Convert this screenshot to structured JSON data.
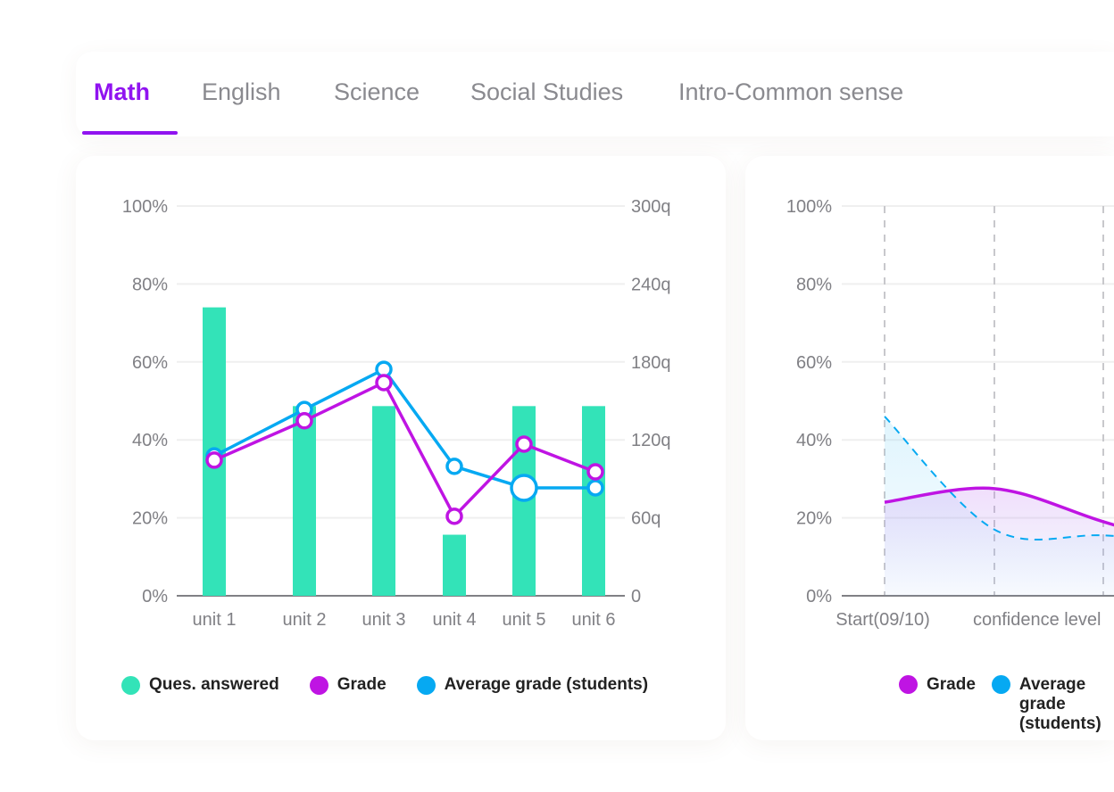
{
  "tabs": [
    {
      "label": "Math",
      "active": true
    },
    {
      "label": "English"
    },
    {
      "label": "Science"
    },
    {
      "label": "Social Studies"
    },
    {
      "label": "Intro-Common sense"
    }
  ],
  "colors": {
    "bar": "#33e3b8",
    "grade": "#bf14e3",
    "average": "#06a9f2",
    "accent": "#9013f0"
  },
  "chart_data": [
    {
      "type": "bar+line",
      "categories": [
        "unit 1",
        "unit 2",
        "unit 3",
        "unit 4",
        "unit 5",
        "unit 6"
      ],
      "y_left": {
        "ticks": [
          "0%",
          "20%",
          "40%",
          "60%",
          "80%",
          "100%"
        ],
        "range": [
          0,
          100
        ]
      },
      "y_right": {
        "ticks": [
          "0",
          "60q",
          "120q",
          "180q",
          "240q",
          "300q"
        ],
        "range": [
          0,
          300
        ]
      },
      "grid": true,
      "legend_position": "bottom",
      "series": [
        {
          "name": "Ques. answered",
          "type": "bar",
          "axis": "right",
          "values": [
            222,
            146,
            146,
            47,
            146,
            146
          ]
        },
        {
          "name": "Grade",
          "type": "line",
          "axis": "left",
          "values": [
            34.8,
            44.9,
            54.7,
            20.4,
            38.9,
            31.8
          ]
        },
        {
          "name": "Average grade (students)",
          "type": "line",
          "axis": "left",
          "values": [
            35.9,
            47.8,
            58.1,
            33.2,
            27.7,
            27.7
          ],
          "highlight_index": 4
        }
      ]
    },
    {
      "type": "area",
      "categories": [
        "Start(09/10)",
        "confidence level",
        ""
      ],
      "y": {
        "ticks": [
          "0%",
          "20%",
          "40%",
          "60%",
          "80%",
          "100%"
        ],
        "range": [
          0,
          100
        ]
      },
      "grid": true,
      "legend_position": "bottom",
      "series": [
        {
          "name": "Grade",
          "style": "solid",
          "values": [
            24,
            27.5,
            19
          ]
        },
        {
          "name": "Average grade (students)",
          "style": "dashed",
          "values": [
            46,
            17,
            15.5
          ]
        }
      ]
    }
  ]
}
